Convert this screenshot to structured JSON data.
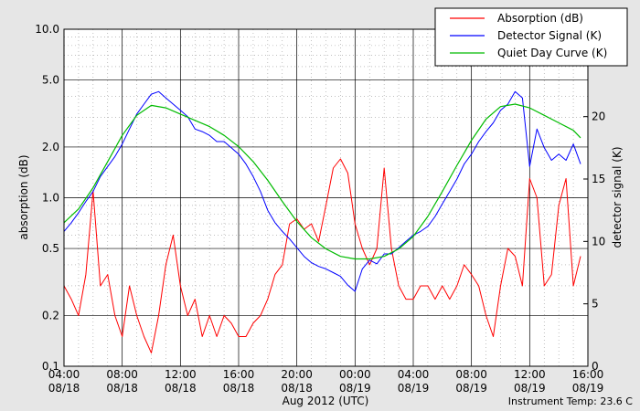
{
  "chart_data": {
    "type": "line",
    "xlabel": "Aug 2012 (UTC)",
    "ylabel_left": "absorption (dB)",
    "ylabel_right": "detector signal (K)",
    "footer_note": "Instrument Temp: 23.6 C",
    "x_range_hours": [
      4,
      40
    ],
    "y_left_scale": "log",
    "y_left_range": [
      0.1,
      10.0
    ],
    "y_left_ticks": [
      {
        "value": 0.1,
        "label": "0.1"
      },
      {
        "value": 0.2,
        "label": "0.2"
      },
      {
        "value": 0.5,
        "label": "0.5"
      },
      {
        "value": 1.0,
        "label": "1.0"
      },
      {
        "value": 2.0,
        "label": "2.0"
      },
      {
        "value": 5.0,
        "label": "5.0"
      },
      {
        "value": 10.0,
        "label": "10.0"
      }
    ],
    "y_right_range": [
      0,
      27
    ],
    "y_right_ticks": [
      0,
      5,
      10,
      15,
      20,
      25
    ],
    "x_ticks": [
      {
        "hour": 4,
        "time": "04:00",
        "date": "08/18"
      },
      {
        "hour": 8,
        "time": "08:00",
        "date": "08/18"
      },
      {
        "hour": 12,
        "time": "12:00",
        "date": "08/18"
      },
      {
        "hour": 16,
        "time": "16:00",
        "date": "08/18"
      },
      {
        "hour": 20,
        "time": "20:00",
        "date": "08/18"
      },
      {
        "hour": 24,
        "time": "00:00",
        "date": "08/19"
      },
      {
        "hour": 28,
        "time": "04:00",
        "date": "08/19"
      },
      {
        "hour": 32,
        "time": "08:00",
        "date": "08/19"
      },
      {
        "hour": 36,
        "time": "12:00",
        "date": "08/19"
      },
      {
        "hour": 40,
        "time": "16:00",
        "date": "08/19"
      }
    ],
    "grid": true,
    "legend_position": "top-right",
    "series": [
      {
        "name": "Absorption (dB)",
        "color": "#ff0000",
        "axis": "left",
        "x_hours": [
          4.0,
          4.5,
          5.0,
          5.5,
          6.0,
          6.5,
          7.0,
          7.5,
          8.0,
          8.5,
          9.0,
          9.5,
          10.0,
          10.5,
          11.0,
          11.5,
          12.0,
          12.5,
          13.0,
          13.5,
          14.0,
          14.5,
          15.0,
          15.5,
          16.0,
          16.5,
          17.0,
          17.5,
          18.0,
          18.5,
          19.0,
          19.5,
          20.0,
          20.5,
          21.0,
          21.5,
          22.0,
          22.5,
          23.0,
          23.5,
          24.0,
          24.5,
          25.0,
          25.5,
          26.0,
          26.5,
          27.0,
          27.5,
          28.0,
          28.5,
          29.0,
          29.5,
          30.0,
          30.5,
          31.0,
          31.5,
          32.0,
          32.5,
          33.0,
          33.5,
          34.0,
          34.5,
          35.0,
          35.5,
          36.0,
          36.5,
          37.0,
          37.5,
          38.0,
          38.5,
          39.0,
          39.5
        ],
        "values": [
          0.3,
          0.25,
          0.2,
          0.35,
          1.1,
          0.3,
          0.35,
          0.2,
          0.15,
          0.3,
          0.2,
          0.15,
          0.12,
          0.2,
          0.4,
          0.6,
          0.3,
          0.2,
          0.25,
          0.15,
          0.2,
          0.15,
          0.2,
          0.18,
          0.15,
          0.15,
          0.18,
          0.2,
          0.25,
          0.35,
          0.4,
          0.7,
          0.75,
          0.65,
          0.7,
          0.55,
          0.9,
          1.5,
          1.7,
          1.4,
          0.7,
          0.5,
          0.4,
          0.5,
          1.5,
          0.5,
          0.3,
          0.25,
          0.25,
          0.3,
          0.3,
          0.25,
          0.3,
          0.25,
          0.3,
          0.4,
          0.35,
          0.3,
          0.2,
          0.15,
          0.3,
          0.5,
          0.45,
          0.3,
          1.3,
          1.0,
          0.3,
          0.35,
          0.9,
          1.3,
          0.3,
          0.45
        ]
      },
      {
        "name": "Detector Signal (K)",
        "color": "#0000ff",
        "axis": "right",
        "x_hours": [
          4.0,
          4.5,
          5.0,
          5.5,
          6.0,
          6.5,
          7.0,
          7.5,
          8.0,
          8.5,
          9.0,
          9.5,
          10.0,
          10.5,
          11.0,
          11.5,
          12.0,
          12.5,
          13.0,
          13.5,
          14.0,
          14.5,
          15.0,
          15.5,
          16.0,
          16.5,
          17.0,
          17.5,
          18.0,
          18.5,
          19.0,
          19.5,
          20.0,
          20.5,
          21.0,
          21.5,
          22.0,
          22.5,
          23.0,
          23.5,
          24.0,
          24.5,
          25.0,
          25.5,
          26.0,
          26.5,
          27.0,
          27.5,
          28.0,
          28.5,
          29.0,
          29.5,
          30.0,
          30.5,
          31.0,
          31.5,
          32.0,
          32.5,
          33.0,
          33.5,
          34.0,
          34.5,
          35.0,
          35.5,
          36.0,
          36.5,
          37.0,
          37.5,
          38.0,
          38.5,
          39.0,
          39.5
        ],
        "values": [
          10.8,
          11.5,
          12.3,
          13.2,
          14.0,
          15.2,
          16.0,
          16.8,
          17.8,
          19.0,
          20.2,
          21.0,
          21.8,
          22.0,
          21.5,
          21.0,
          20.5,
          20.0,
          19.0,
          18.8,
          18.5,
          18.0,
          18.0,
          17.5,
          17.0,
          16.2,
          15.2,
          14.0,
          12.5,
          11.5,
          10.8,
          10.2,
          9.5,
          8.8,
          8.3,
          8.0,
          7.8,
          7.5,
          7.2,
          6.5,
          6.0,
          7.8,
          8.5,
          8.2,
          9.0,
          9.0,
          9.5,
          10.0,
          10.5,
          10.8,
          11.2,
          12.0,
          13.0,
          14.0,
          15.0,
          16.2,
          17.0,
          18.0,
          18.8,
          19.5,
          20.5,
          21.0,
          22.0,
          21.5,
          16.0,
          19.0,
          17.5,
          16.5,
          17.0,
          16.5,
          17.8,
          16.2
        ]
      },
      {
        "name": "Quiet Day Curve (K)",
        "color": "#00bb00",
        "axis": "right",
        "x_hours": [
          4.0,
          5.0,
          6.0,
          7.0,
          8.0,
          9.0,
          10.0,
          11.0,
          12.0,
          13.0,
          14.0,
          15.0,
          16.0,
          17.0,
          18.0,
          19.0,
          20.0,
          21.0,
          22.0,
          23.0,
          24.0,
          25.0,
          26.0,
          27.0,
          28.0,
          29.0,
          30.0,
          31.0,
          32.0,
          33.0,
          34.0,
          35.0,
          36.0,
          37.0,
          38.0,
          39.0,
          39.5
        ],
        "values": [
          11.5,
          12.6,
          14.3,
          16.4,
          18.5,
          20.1,
          20.9,
          20.7,
          20.2,
          19.7,
          19.2,
          18.5,
          17.6,
          16.4,
          14.9,
          13.2,
          11.6,
          10.3,
          9.4,
          8.8,
          8.6,
          8.6,
          8.8,
          9.4,
          10.4,
          12.0,
          14.0,
          16.1,
          18.1,
          19.8,
          20.8,
          21.0,
          20.7,
          20.1,
          19.5,
          18.9,
          18.3
        ]
      }
    ]
  }
}
